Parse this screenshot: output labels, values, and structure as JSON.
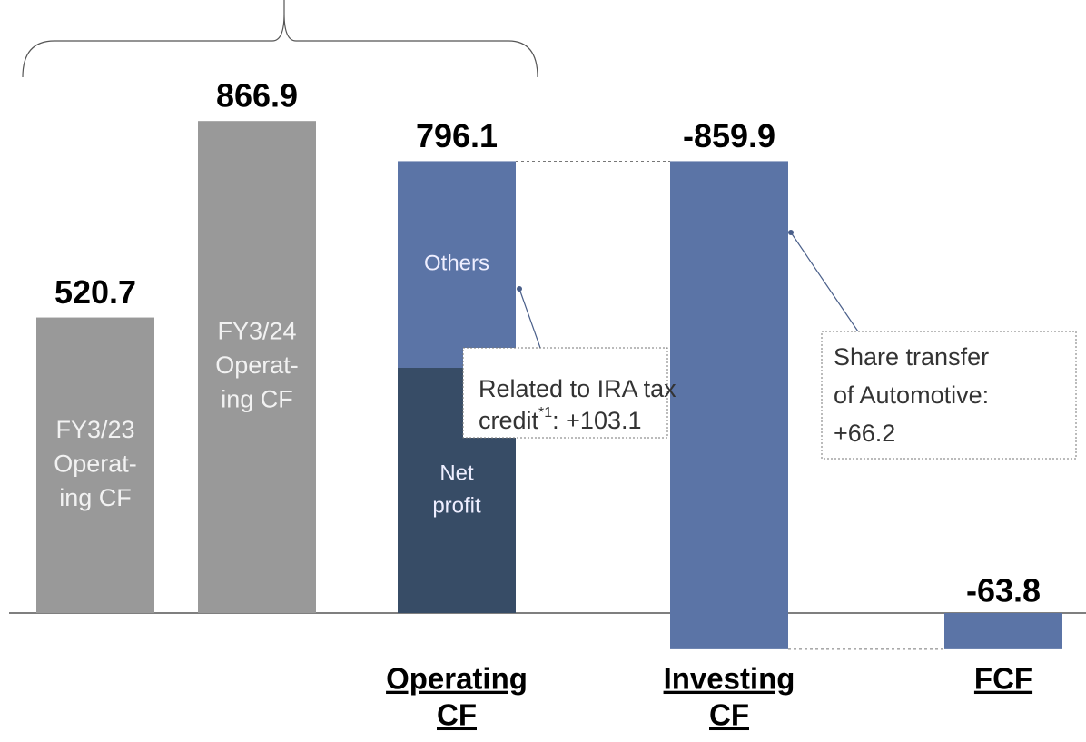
{
  "chart_data": {
    "type": "waterfall",
    "bars": [
      {
        "inner_label": [
          "FY3/23",
          "Operat-",
          "ing CF"
        ],
        "value": 520.7,
        "color": "#999999"
      },
      {
        "inner_label": [
          "FY3/24",
          "Operat-",
          "ing CF"
        ],
        "value": 866.9,
        "color": "#999999"
      },
      {
        "category": [
          "Operating",
          "CF"
        ],
        "value": 796.1,
        "segments": [
          {
            "name": [
              "Net",
              "profit"
            ],
            "value": 432,
            "color": "#374c66"
          },
          {
            "name": [
              "Others"
            ],
            "value": 364.1,
            "color": "#5b74a6"
          }
        ]
      },
      {
        "category": [
          "Investing",
          "CF"
        ],
        "value": -859.9,
        "color": "#5b74a6",
        "floating": true
      },
      {
        "category": [
          "FCF"
        ],
        "value": -63.8,
        "color": "#5b74a6"
      }
    ],
    "annotations": [
      {
        "lines": [
          "Related to IRA tax",
          "credit"
        ],
        "footnote": "*1",
        "tail": ": +103.1"
      },
      {
        "lines": [
          "Share transfer",
          "of Automotive:",
          "+66.2"
        ]
      }
    ]
  }
}
